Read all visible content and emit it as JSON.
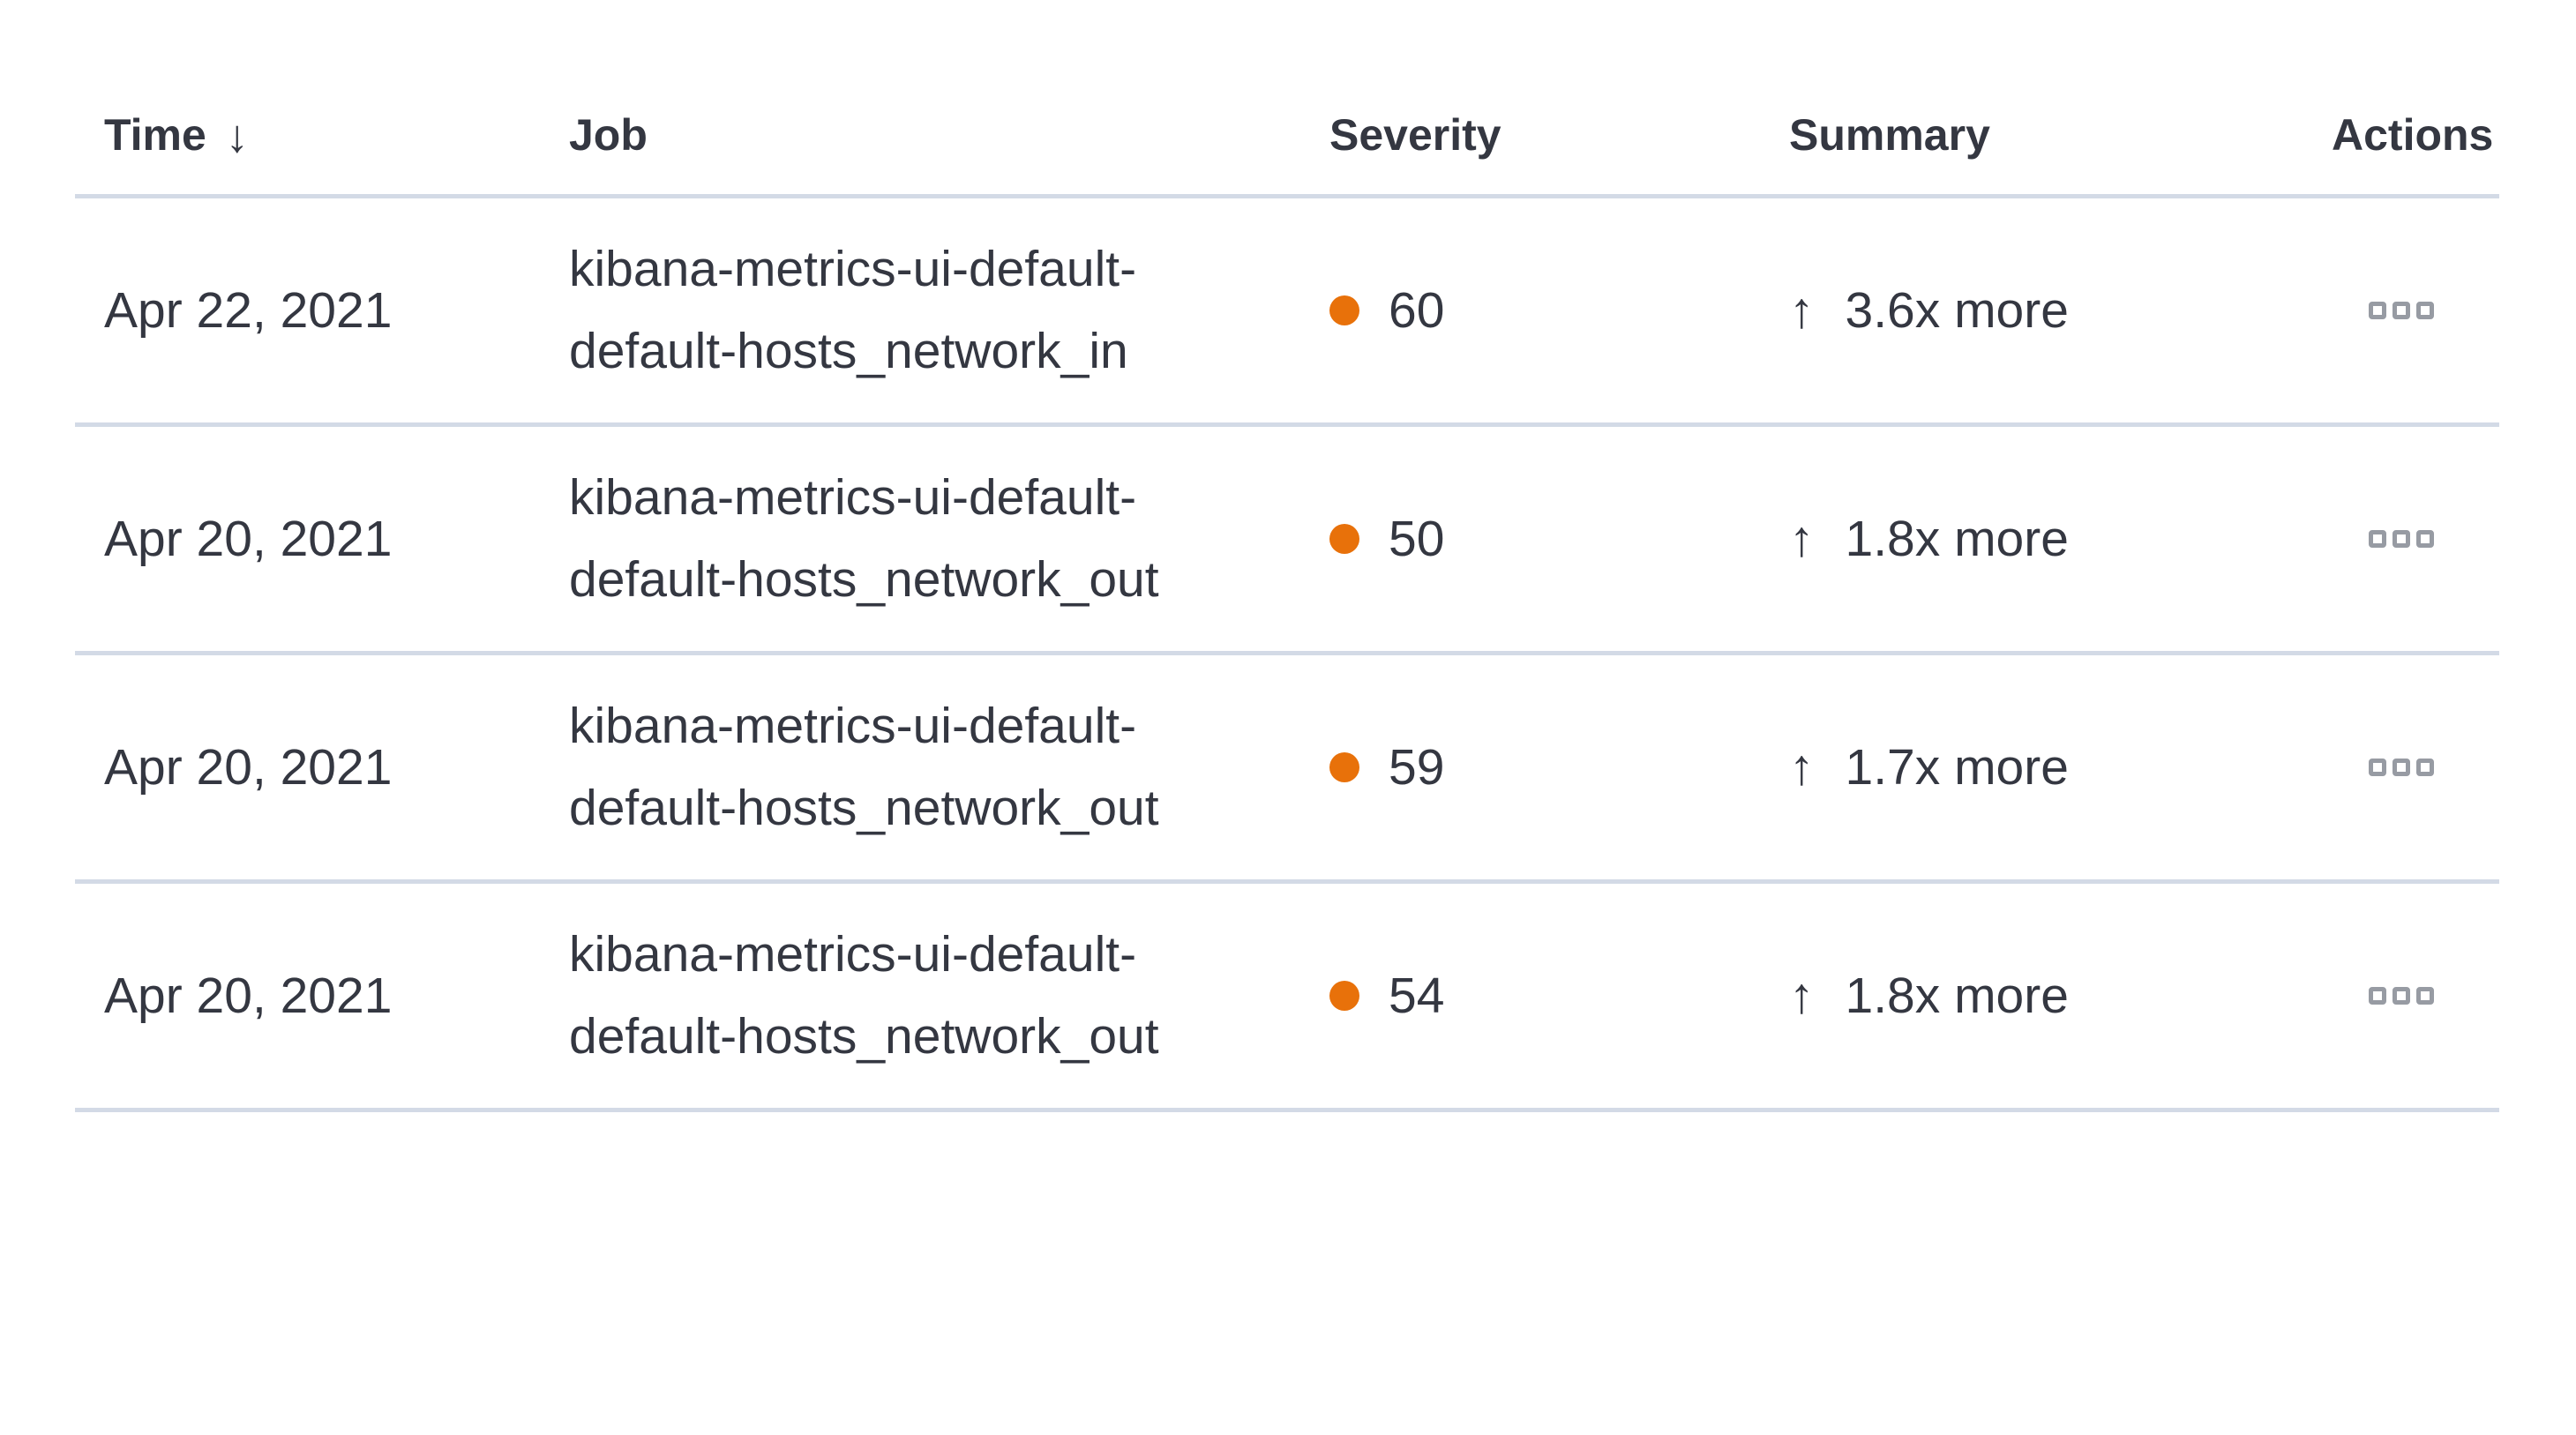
{
  "colors": {
    "text": "#343741",
    "divider": "#d3dae6",
    "severity_dot": "#e8710a",
    "actions_icon": "#979ba3",
    "background": "#ffffff"
  },
  "table": {
    "columns": [
      {
        "label": "Time",
        "sortable": true,
        "sort_direction": "descending"
      },
      {
        "label": "Job",
        "sortable": false
      },
      {
        "label": "Severity",
        "sortable": false
      },
      {
        "label": "Summary",
        "sortable": false
      },
      {
        "label": "Actions",
        "sortable": false
      }
    ],
    "icons": {
      "sort_desc": "↓",
      "increase_arrow": "↑",
      "actions": "boxes-horizontal"
    },
    "rows": [
      {
        "time": "Apr 22, 2021",
        "job": "kibana-metrics-ui-default-default-hosts_network_in",
        "severity": "60",
        "summary": "3.6x more"
      },
      {
        "time": "Apr 20, 2021",
        "job": "kibana-metrics-ui-default-default-hosts_network_out",
        "severity": "50",
        "summary": "1.8x more"
      },
      {
        "time": "Apr 20, 2021",
        "job": "kibana-metrics-ui-default-default-hosts_network_out",
        "severity": "59",
        "summary": "1.7x more"
      },
      {
        "time": "Apr 20, 2021",
        "job": "kibana-metrics-ui-default-default-hosts_network_out",
        "severity": "54",
        "summary": "1.8x more"
      }
    ]
  }
}
